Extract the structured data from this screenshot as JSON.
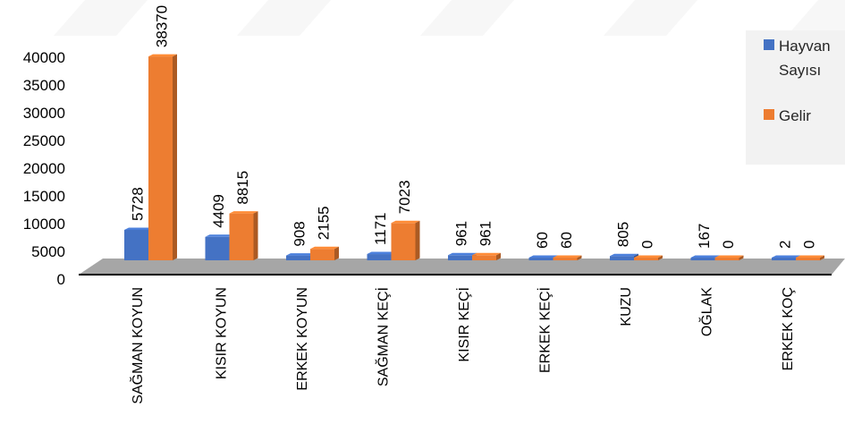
{
  "chart_data": {
    "type": "bar",
    "categories": [
      "SAĞMAN KOYUN",
      "KISIR KOYUN",
      "ERKEK KOYUN",
      "SAĞMAN KEÇİ",
      "KISIR KEÇİ",
      "ERKEK KEÇİ",
      "KUZU",
      "OĞLAK",
      "ERKEK KOÇ"
    ],
    "series": [
      {
        "name": "Hayvan Sayısı",
        "values": [
          5728,
          4409,
          908,
          1171,
          961,
          60,
          805,
          167,
          2
        ],
        "color": "#4472C4"
      },
      {
        "name": "Gelir",
        "values": [
          38370,
          8815,
          2155,
          7023,
          961,
          60,
          0,
          0,
          0
        ],
        "color": "#ED7D31"
      }
    ],
    "y_ticks": [
      "0",
      "5000",
      "10000",
      "15000",
      "20000",
      "25000",
      "30000",
      "35000",
      "40000"
    ],
    "ylim": [
      0,
      40000
    ],
    "legend": {
      "placement": "top-right",
      "labels": [
        [
          "Hayvan",
          "Sayısı"
        ],
        [
          "Gelir"
        ]
      ]
    },
    "title": "",
    "xlabel": "",
    "ylabel": "",
    "style": "3d-column"
  }
}
